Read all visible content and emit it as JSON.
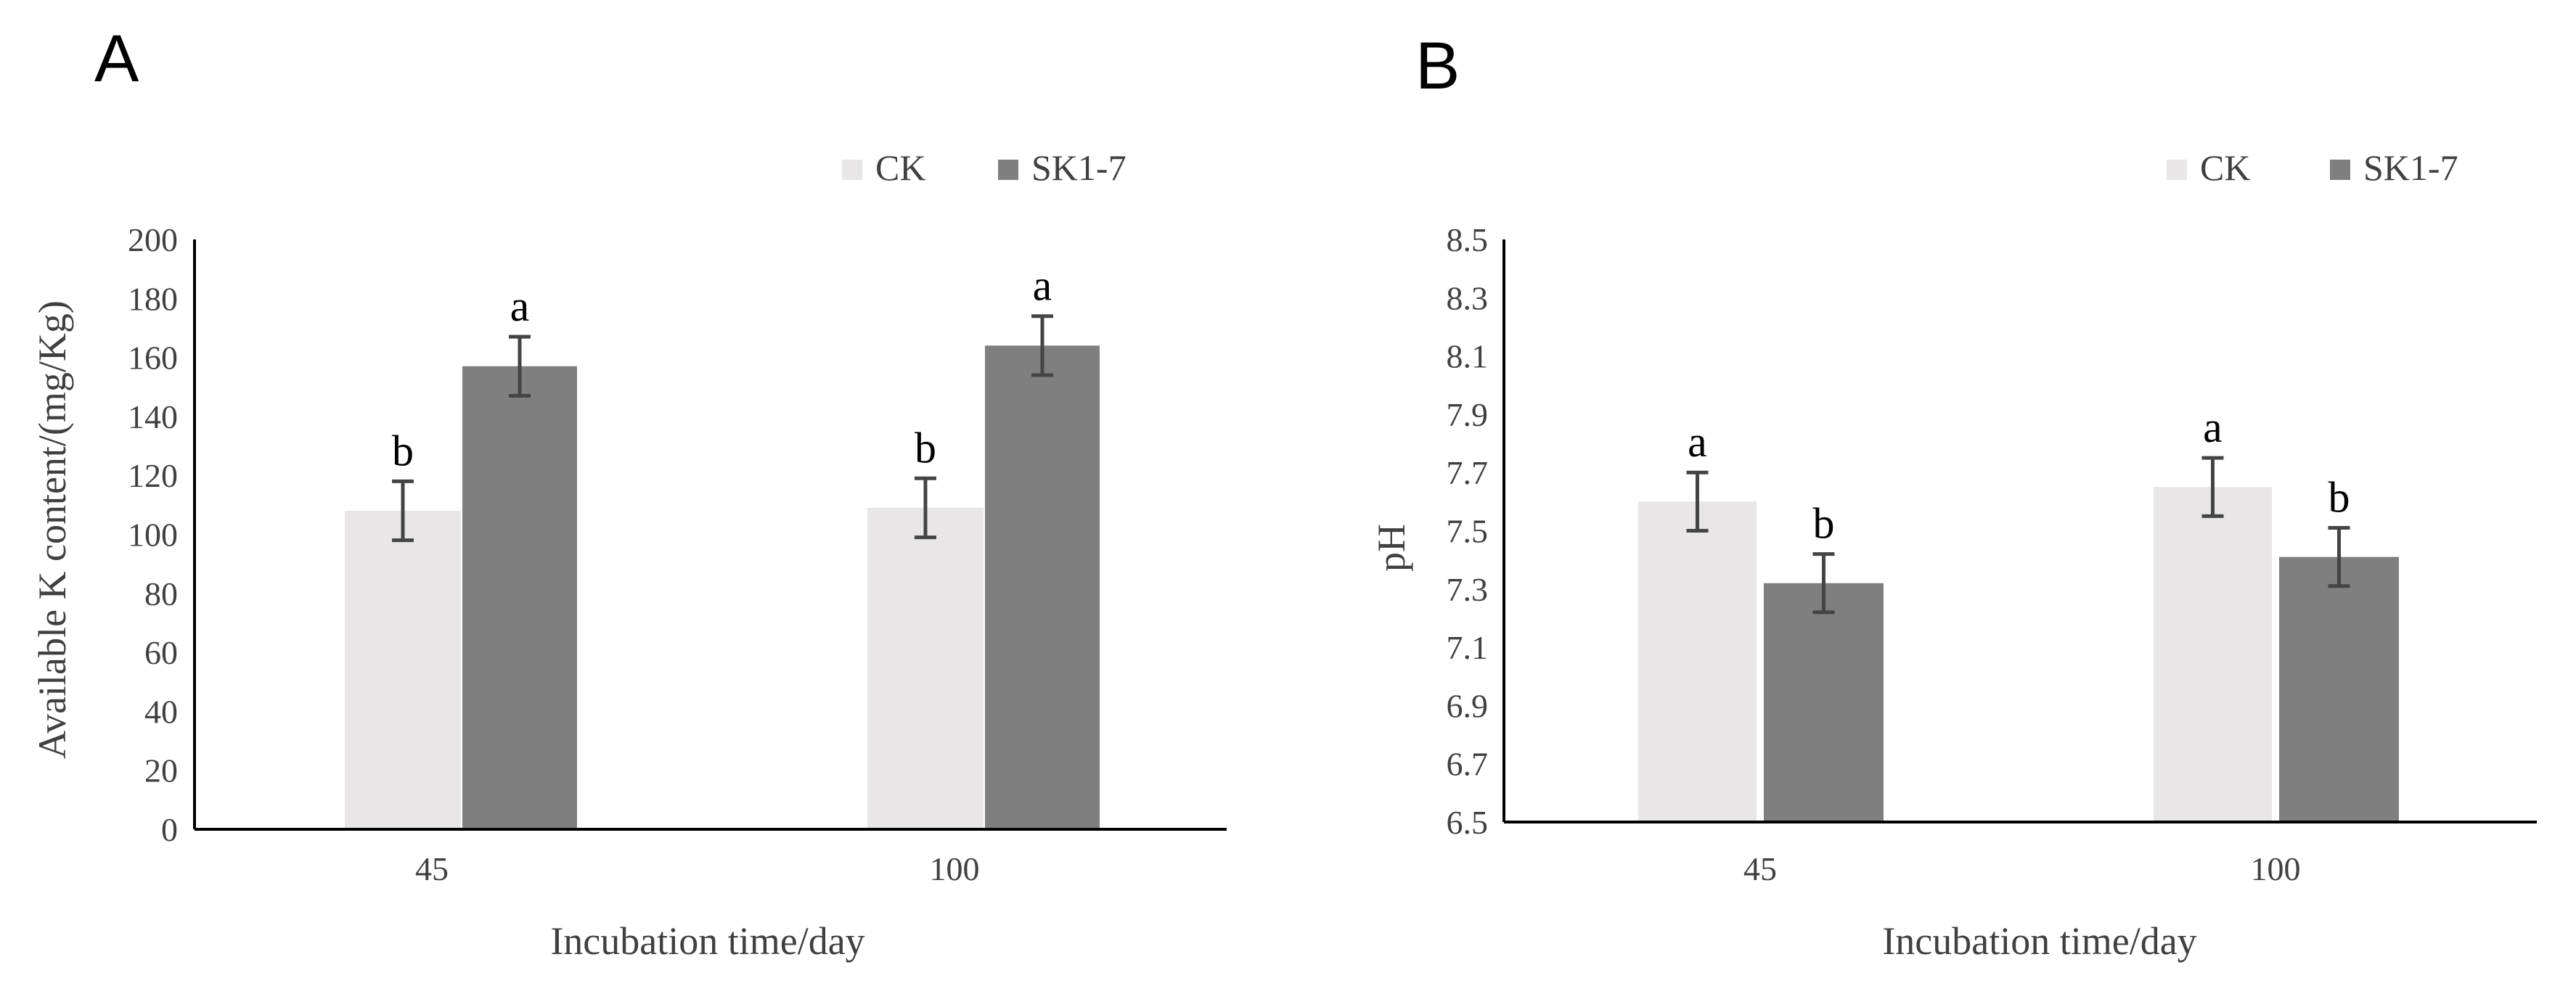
{
  "colors": {
    "ck": "#e8e6e6",
    "sk": "#7f7f7f",
    "axis": "#000000",
    "text": "#404040",
    "error": "#444444"
  },
  "chart_data": [
    {
      "panel": "A",
      "type": "bar",
      "title": "",
      "xlabel": "Incubation time/day",
      "ylabel": "Available K content/(mg/Kg)",
      "categories": [
        "45",
        "100"
      ],
      "ylim": [
        0,
        200
      ],
      "yticks": [
        "0",
        "20",
        "40",
        "60",
        "80",
        "100",
        "120",
        "140",
        "160",
        "180",
        "200"
      ],
      "grid": false,
      "legend_position": "top-right",
      "series": [
        {
          "name": "CK",
          "values": [
            108,
            109
          ],
          "errors": [
            10,
            10
          ],
          "labels": [
            "b",
            "b"
          ],
          "color": "#e8e6e6"
        },
        {
          "name": "SK1-7",
          "values": [
            157,
            164
          ],
          "errors": [
            10,
            10
          ],
          "labels": [
            "a",
            "a"
          ],
          "color": "#7f7f7f"
        }
      ]
    },
    {
      "panel": "B",
      "type": "bar",
      "title": "",
      "xlabel": "Incubation time/day",
      "ylabel": "pH",
      "categories": [
        "45",
        "100"
      ],
      "ylim": [
        6.5,
        8.5
      ],
      "yticks": [
        "6.5",
        "6.7",
        "6.9",
        "7.1",
        "7.3",
        "7.5",
        "7.7",
        "7.9",
        "8.1",
        "8.3",
        "8.5"
      ],
      "grid": false,
      "legend_position": "top-right",
      "series": [
        {
          "name": "CK",
          "values": [
            7.6,
            7.65
          ],
          "errors": [
            0.1,
            0.1
          ],
          "labels": [
            "a",
            "a"
          ],
          "color": "#e8e6e6"
        },
        {
          "name": "SK1-7",
          "values": [
            7.32,
            7.41
          ],
          "errors": [
            0.1,
            0.1
          ],
          "labels": [
            "b",
            "b"
          ],
          "color": "#7f7f7f"
        }
      ]
    }
  ]
}
